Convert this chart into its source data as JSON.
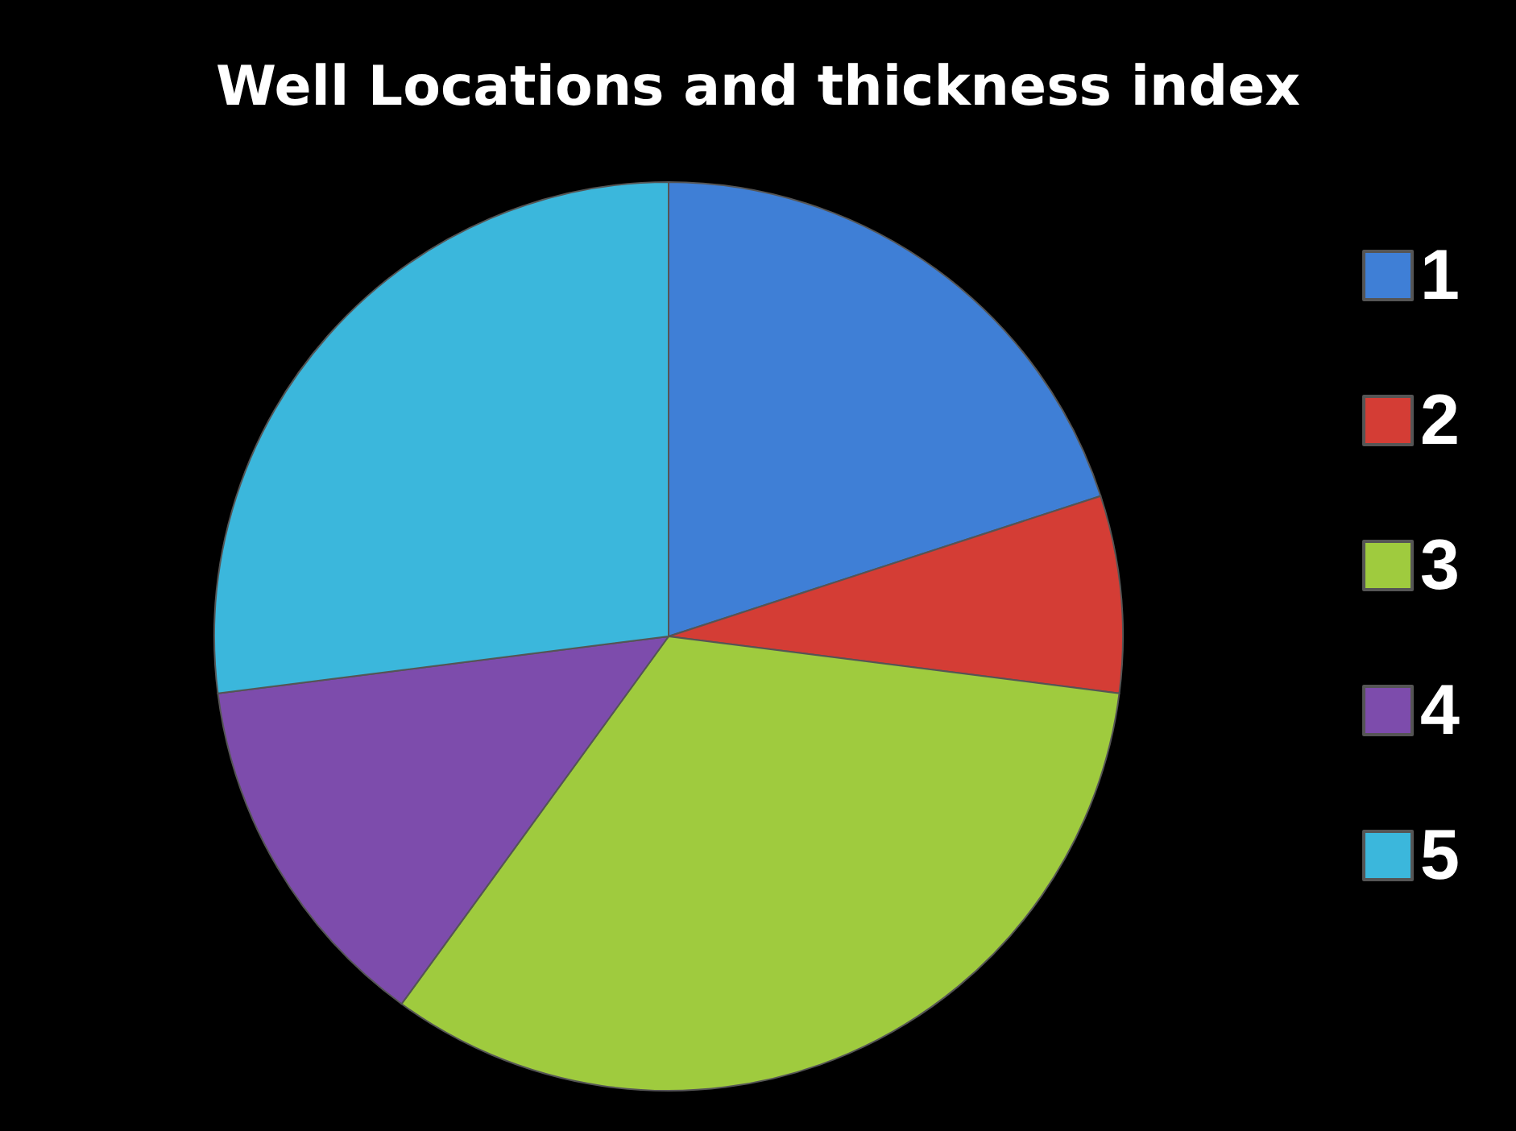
{
  "chart_data": {
    "type": "pie",
    "title": "Well Locations and thickness index",
    "categories": [
      "1",
      "2",
      "3",
      "4",
      "5"
    ],
    "values": [
      20,
      7,
      33,
      13,
      27
    ],
    "colors": [
      "#3f7fd6",
      "#d43d35",
      "#9fcb3e",
      "#7d4cac",
      "#3bb7dc"
    ],
    "legend": "right"
  }
}
